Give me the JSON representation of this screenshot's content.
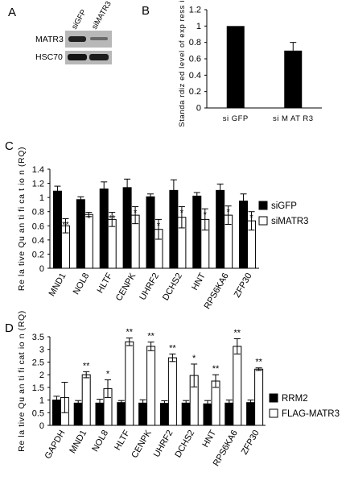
{
  "panels": {
    "a": "A",
    "b": "B",
    "c": "C",
    "d": "D"
  },
  "blot": {
    "lanes": [
      "siGFP",
      "siMATR3"
    ],
    "rows": [
      "MATR3",
      "HSC70"
    ]
  },
  "colors": {
    "dark_bar": "#000000",
    "light_bar": "#ffffff",
    "blot_bg": "#b8b8b8",
    "band": "#202020"
  },
  "chart_data": [
    {
      "id": "B",
      "type": "bar",
      "categories": [
        "si GFP",
        "si M AT R3"
      ],
      "values": [
        1.0,
        0.7
      ],
      "errors": [
        0,
        0.1
      ],
      "ylabel": "Standa rdiz ed level of exp ress ion",
      "ylim": [
        0,
        1.2
      ],
      "yticks": [
        "0",
        "0.2",
        "0.4",
        "0.6",
        "0.8",
        "1",
        "1.2"
      ],
      "grid": false
    },
    {
      "id": "C",
      "type": "bar",
      "categories": [
        "MND1",
        "NOL8",
        "HLTF",
        "CENPK",
        "UHRF2",
        "DCHS2",
        "HNT",
        "RPS6KA6",
        "ZFP30"
      ],
      "series": [
        {
          "name": "siGFP",
          "values": [
            1.09,
            0.97,
            1.12,
            1.14,
            1.01,
            1.1,
            1.02,
            1.1,
            0.95
          ],
          "errors": [
            0.07,
            0.04,
            0.1,
            0.12,
            0.04,
            0.15,
            0.05,
            0.09,
            0.1
          ]
        },
        {
          "name": "siMATR3",
          "values": [
            0.6,
            0.76,
            0.69,
            0.75,
            0.55,
            0.72,
            0.69,
            0.75,
            0.67
          ],
          "errors": [
            0.1,
            0.03,
            0.1,
            0.12,
            0.14,
            0.15,
            0.15,
            0.13,
            0.13
          ]
        }
      ],
      "significance": [
        "**",
        "*",
        "**",
        "*",
        "*",
        "*",
        "*",
        "*",
        "*"
      ],
      "ylabel": "Re la tive Qu an ti fi ca t io n (RQ)",
      "ylim": [
        0,
        1.4
      ],
      "yticks": [
        "0",
        "0.2",
        "0.4",
        "0.6",
        "0.8",
        "1",
        "1.2",
        "1.4"
      ],
      "legend_position": "right",
      "grid": false
    },
    {
      "id": "D",
      "type": "bar",
      "categories": [
        "GAPDH",
        "MND1",
        "NOL8",
        "HLTF",
        "CENPK",
        "UHRF2",
        "DCHS2",
        "HNT",
        "RPS6KA6",
        "ZFP30"
      ],
      "series": [
        {
          "name": "RRM2",
          "values": [
            1.0,
            0.88,
            0.88,
            0.9,
            0.88,
            0.87,
            0.88,
            0.85,
            0.88,
            0.9
          ],
          "errors": [
            0.15,
            0.1,
            0.15,
            0.08,
            0.13,
            0.1,
            0.1,
            0.13,
            0.12,
            0.1
          ]
        },
        {
          "name": "FLAG-MATR3",
          "values": [
            1.1,
            2.0,
            1.45,
            3.3,
            3.12,
            2.67,
            1.97,
            1.75,
            3.12,
            2.22
          ],
          "errors": [
            0.6,
            0.12,
            0.35,
            0.15,
            0.17,
            0.15,
            0.45,
            0.25,
            0.3,
            0.05
          ]
        }
      ],
      "significance": [
        "",
        "**",
        "*",
        "**",
        "**",
        "**",
        "*",
        "**",
        "**",
        "**"
      ],
      "ylabel": "Re la tive Qu an ti fi cat io n (RQ)",
      "ylim": [
        0,
        3.5
      ],
      "yticks": [
        "0",
        "0.5",
        "1",
        "1.5",
        "2",
        "2.5",
        "3",
        "3.5"
      ],
      "legend_position": "right",
      "grid": false
    }
  ]
}
